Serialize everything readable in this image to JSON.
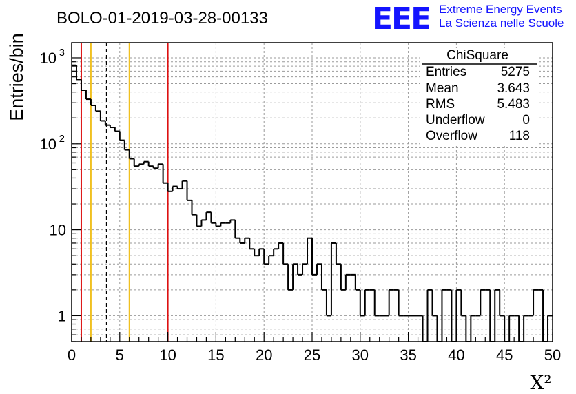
{
  "header": {
    "run_title": "BOLO-01-2019-03-28-00133",
    "logo_text": "EEE",
    "logo_line1": "Extreme Energy Events",
    "logo_line2": "La Scienza nelle Scuole"
  },
  "stats": {
    "title": "ChiSquare",
    "rows": [
      {
        "label": "Entries",
        "value": "5275"
      },
      {
        "label": "Mean",
        "value": "3.643"
      },
      {
        "label": "RMS",
        "value": "5.483"
      },
      {
        "label": "Underflow",
        "value": "0"
      },
      {
        "label": "Overflow",
        "value": "118"
      }
    ]
  },
  "chart_data": {
    "type": "histogram",
    "title": "BOLO-01-2019-03-28-00133",
    "xlabel": "X²",
    "ylabel": "Entries/bin",
    "xlim": [
      0,
      50
    ],
    "ylim_log": [
      0.5,
      1500
    ],
    "yscale": "log",
    "grid": true,
    "bin_width": 0.5,
    "bin_start": 0,
    "x_ticks": [
      {
        "v": 0,
        "label": "0"
      },
      {
        "v": 5,
        "label": "5"
      },
      {
        "v": 10,
        "label": "10"
      },
      {
        "v": 15,
        "label": "15"
      },
      {
        "v": 20,
        "label": "20"
      },
      {
        "v": 25,
        "label": "25"
      },
      {
        "v": 30,
        "label": "30"
      },
      {
        "v": 35,
        "label": "35"
      },
      {
        "v": 40,
        "label": "40"
      },
      {
        "v": 45,
        "label": "45"
      },
      {
        "v": 50,
        "label": "50"
      }
    ],
    "y_ticks": [
      {
        "v": 1,
        "label": "1"
      },
      {
        "v": 10,
        "label": "10"
      }
    ],
    "y_ticks_exp": [
      {
        "v": 100,
        "base": "10",
        "exp": "2"
      },
      {
        "v": 1000,
        "base": "10",
        "exp": "3"
      }
    ],
    "values": [
      820,
      560,
      420,
      330,
      280,
      240,
      185,
      165,
      155,
      140,
      110,
      85,
      67,
      55,
      58,
      62,
      55,
      52,
      58,
      35,
      28,
      32,
      30,
      37,
      22,
      15,
      11,
      13,
      16,
      12,
      11,
      12,
      12,
      13,
      8,
      7,
      8,
      6,
      5,
      6,
      4,
      5,
      6,
      7,
      4,
      2,
      4,
      3,
      4,
      8,
      3,
      4,
      2,
      1,
      7,
      4,
      2,
      3,
      3,
      2,
      1,
      2,
      2,
      1,
      1,
      1,
      2,
      2,
      1,
      1,
      1,
      1,
      1,
      0,
      2,
      1,
      0,
      2,
      2,
      0,
      2,
      1,
      0,
      1,
      1,
      2,
      2,
      0,
      2,
      1,
      0,
      1,
      1,
      0,
      1,
      1,
      2,
      2,
      0,
      1
    ],
    "vertical_lines": [
      {
        "x": 1,
        "color": "#dd1111",
        "style": "solid"
      },
      {
        "x": 2,
        "color": "#f0c020",
        "style": "solid"
      },
      {
        "x": 3.643,
        "color": "#000000",
        "style": "dashed"
      },
      {
        "x": 6,
        "color": "#f0c020",
        "style": "solid"
      },
      {
        "x": 10,
        "color": "#dd1111",
        "style": "solid"
      }
    ]
  }
}
